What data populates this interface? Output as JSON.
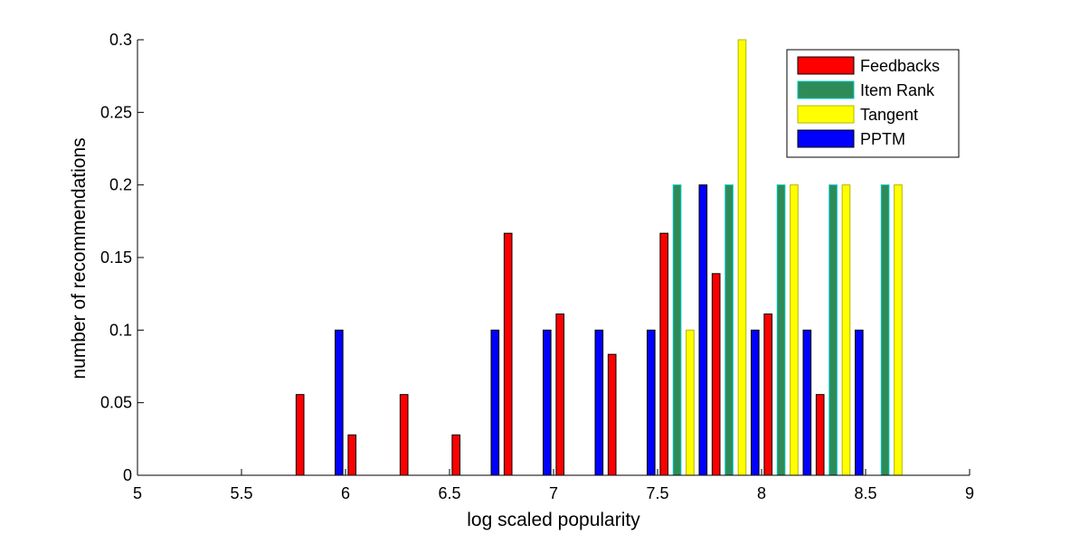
{
  "chart_data": {
    "type": "bar",
    "xlabel": "log scaled popularity",
    "ylabel": "number of recommendations",
    "xlim": [
      5,
      9
    ],
    "ylim": [
      0,
      0.3
    ],
    "x_ticks": [
      "5",
      "5.5",
      "6",
      "6.5",
      "7",
      "7.5",
      "8",
      "8.5",
      "9"
    ],
    "y_ticks": [
      "0",
      "0.05",
      "0.1",
      "0.15",
      "0.2",
      "0.25",
      "0.3"
    ],
    "grid": false,
    "legend_position": "top-right",
    "bin_centers": [
      5.125,
      5.375,
      5.625,
      5.875,
      6.125,
      6.375,
      6.625,
      6.875,
      7.125,
      7.375,
      7.625,
      7.875,
      8.125,
      8.375,
      8.625,
      8.875
    ],
    "series": [
      {
        "name": "Feedbacks",
        "color": "#ff0000",
        "values": [
          0,
          0,
          0,
          0.0556,
          0.0278,
          0.0556,
          0.0278,
          0.1667,
          0.1111,
          0.0833,
          0.1667,
          0.1389,
          0.1111,
          0.0556,
          0,
          0
        ]
      },
      {
        "name": "Item Rank",
        "color": "#2e8b57",
        "values": [
          0,
          0,
          0,
          0,
          0,
          0,
          0,
          0,
          0,
          0,
          0.2,
          0.2,
          0.2,
          0.2,
          0.2,
          0
        ]
      },
      {
        "name": "Tangent",
        "color": "#ffff00",
        "values": [
          0,
          0,
          0,
          0,
          0,
          0,
          0,
          0,
          0,
          0,
          0.1,
          0.3,
          0.2,
          0.2,
          0.2,
          0
        ]
      },
      {
        "name": "PPTM",
        "color": "#0000ff",
        "values": [
          0,
          0,
          0,
          0.1,
          0,
          0,
          0.1,
          0.1,
          0.1,
          0.1,
          0.2,
          0.1,
          0.1,
          0.1,
          0,
          0
        ]
      }
    ]
  }
}
